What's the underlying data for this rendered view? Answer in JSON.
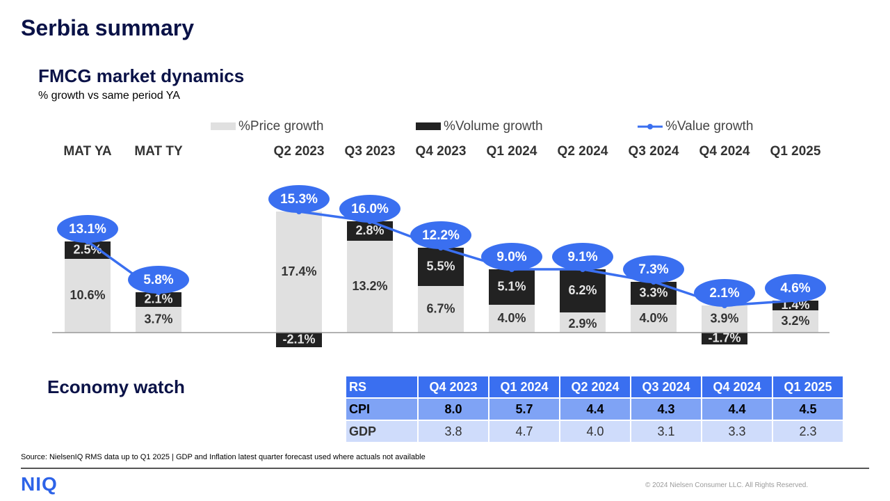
{
  "page": {
    "title": "Serbia summary",
    "subtitle": "FMCG market dynamics",
    "subnote": "% growth vs same period YA",
    "econ_title": "Economy watch",
    "source": "Source: NielsenIQ RMS data up to Q1 2025 |  GDP and Inflation  latest quarter forecast used where actuals not available",
    "logo": "NIQ",
    "copyright": "© 2024 Nielsen Consumer LLC. All Rights Reserved."
  },
  "colors": {
    "price": "#e0e0e0",
    "volume": "#222222",
    "value": "#3a6ff0",
    "navy": "#0a1247"
  },
  "chart_data": {
    "type": "bar",
    "stacked": true,
    "legend_position": "top",
    "categories": [
      "MAT YA",
      "MAT TY",
      "Q2 2023",
      "Q3 2023",
      "Q4 2023",
      "Q1 2024",
      "Q2 2024",
      "Q3 2024",
      "Q4 2024",
      "Q1 2025"
    ],
    "series": [
      {
        "name": "%Price growth",
        "kind": "bar",
        "values": [
          10.6,
          3.7,
          17.4,
          13.2,
          6.7,
          4.0,
          2.9,
          4.0,
          3.9,
          3.2
        ],
        "labels": [
          "10.6%",
          "3.7%",
          "17.4%",
          "13.2%",
          "6.7%",
          "4.0%",
          "2.9%",
          "4.0%",
          "3.9%",
          "3.2%"
        ]
      },
      {
        "name": "%Volume growth",
        "kind": "bar",
        "values": [
          2.5,
          2.1,
          -2.1,
          2.8,
          5.5,
          5.1,
          6.2,
          3.3,
          -1.7,
          1.4
        ],
        "labels": [
          "2.5%",
          "2.1%",
          "-2.1%",
          "2.8%",
          "5.5%",
          "5.1%",
          "6.2%",
          "3.3%",
          "-1.7%",
          "1.4%"
        ]
      },
      {
        "name": "%Value growth",
        "kind": "line",
        "values": [
          13.1,
          5.8,
          15.3,
          16.0,
          12.2,
          9.0,
          9.1,
          7.3,
          2.1,
          4.6
        ],
        "labels": [
          "13.1%",
          "5.8%",
          "15.3%",
          "16.0%",
          "12.2%",
          "9.0%",
          "9.1%",
          "7.3%",
          "2.1%",
          "4.6%"
        ]
      }
    ]
  },
  "economy": {
    "headers": [
      "RS",
      "Q4 2023",
      "Q1 2024",
      "Q2 2024",
      "Q3 2024",
      "Q4 2024",
      "Q1 2025"
    ],
    "rows": [
      {
        "label": "CPI",
        "values": [
          "8.0",
          "5.7",
          "4.4",
          "4.3",
          "4.4",
          "4.5"
        ]
      },
      {
        "label": "GDP",
        "values": [
          "3.8",
          "4.7",
          "4.0",
          "3.1",
          "3.3",
          "2.3"
        ]
      }
    ]
  }
}
